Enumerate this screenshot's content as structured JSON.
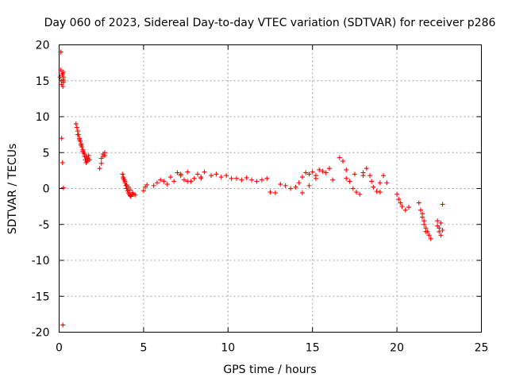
{
  "chart_data": {
    "type": "scatter",
    "title": "Day 060 of 2023, Sidereal Day-to-day VTEC variation (SDTVAR) for receiver p286",
    "xlabel": "GPS time / hours",
    "ylabel": "SDTVAR / TECUs",
    "xlim": [
      0,
      25
    ],
    "ylim": [
      -20,
      20
    ],
    "xticks": [
      0,
      5,
      10,
      15,
      20,
      25
    ],
    "yticks": [
      -20,
      -15,
      -10,
      -5,
      0,
      5,
      10,
      15,
      20
    ],
    "xtick_labels": [
      "0",
      "5",
      "10",
      "15",
      "20",
      "25"
    ],
    "ytick_labels": [
      "-20",
      "-15",
      "-10",
      "-5",
      "0",
      "5",
      "10",
      "15",
      "20"
    ],
    "grid": true,
    "marker": "plus",
    "color": "#ff0000",
    "series": [
      {
        "name": "SDTVAR",
        "x": [
          0.05,
          0.1,
          0.12,
          0.15,
          0.18,
          0.2,
          0.22,
          0.25,
          0.1,
          0.15,
          0.2,
          0.25,
          0.22,
          0.25,
          0.25,
          0.25,
          0.25,
          1.0,
          1.05,
          1.1,
          1.15,
          1.2,
          1.25,
          1.3,
          1.35,
          1.4,
          1.45,
          1.5,
          1.55,
          1.6,
          1.65,
          1.7,
          1.75,
          1.8,
          1.1,
          1.2,
          1.3,
          1.4,
          1.5,
          1.6,
          1.7,
          2.4,
          2.5,
          2.6,
          2.7,
          2.5,
          2.6,
          2.7,
          3.75,
          3.8,
          3.85,
          3.9,
          3.95,
          4.0,
          4.05,
          4.1,
          4.15,
          4.2,
          4.25,
          4.3,
          4.35,
          4.4,
          4.5,
          3.8,
          3.9,
          4.0,
          4.1,
          4.2,
          5.0,
          5.1,
          5.2,
          5.6,
          5.8,
          6.0,
          6.2,
          6.4,
          6.6,
          6.8,
          7.0,
          7.2,
          7.4,
          7.6,
          7.8,
          8.0,
          8.2,
          8.4,
          8.6,
          7.2,
          7.6,
          8.4,
          9.0,
          9.3,
          9.6,
          9.9,
          10.2,
          10.5,
          10.8,
          11.1,
          11.4,
          11.7,
          12.0,
          12.3,
          12.5,
          12.8,
          13.1,
          13.4,
          13.7,
          14.0,
          14.2,
          14.4,
          14.6,
          14.8,
          15.0,
          15.2,
          15.4,
          15.6,
          15.8,
          16.0,
          16.2,
          14.4,
          14.8,
          15.2,
          16.6,
          16.8,
          17.0,
          17.2,
          17.4,
          17.6,
          17.8,
          18.0,
          18.2,
          18.4,
          18.6,
          18.8,
          19.0,
          19.2,
          19.4,
          17.0,
          17.5,
          18.0,
          18.5,
          19.0,
          20.0,
          20.1,
          20.2,
          20.3,
          20.5,
          20.7,
          21.3,
          21.4,
          21.5,
          21.6,
          21.7,
          21.8,
          21.9,
          22.0,
          21.5,
          21.6,
          21.7,
          22.4,
          22.5,
          22.6,
          22.7,
          22.4,
          22.5,
          22.6,
          22.7
        ],
        "y": [
          15.5,
          16.5,
          15.0,
          14.5,
          15.8,
          16.0,
          14.2,
          15.0,
          19.0,
          7.0,
          3.6,
          0.1,
          -19.0,
          15.5,
          14.8,
          16.2,
          15.2,
          9.0,
          8.5,
          8.0,
          7.5,
          7.0,
          6.6,
          6.2,
          5.8,
          5.4,
          5.0,
          4.5,
          4.0,
          3.6,
          3.8,
          4.2,
          4.6,
          4.0,
          7.5,
          6.8,
          6.0,
          5.2,
          4.8,
          4.4,
          4.0,
          2.8,
          3.5,
          4.5,
          5.0,
          4.2,
          4.8,
          4.6,
          2.0,
          1.6,
          1.2,
          0.8,
          0.4,
          0.0,
          -0.3,
          -0.6,
          -0.8,
          -1.0,
          -1.1,
          -0.8,
          -0.6,
          -0.8,
          -0.9,
          1.4,
          1.0,
          0.5,
          0.2,
          -0.2,
          -0.3,
          0.2,
          0.5,
          0.4,
          0.8,
          1.2,
          1.0,
          0.6,
          1.6,
          1.0,
          2.2,
          2.0,
          1.2,
          2.3,
          1.0,
          1.4,
          2.0,
          1.6,
          2.3,
          1.8,
          1.0,
          1.4,
          1.8,
          2.0,
          1.6,
          1.8,
          1.4,
          1.4,
          1.2,
          1.5,
          1.2,
          1.0,
          1.2,
          1.4,
          -0.5,
          -0.6,
          0.6,
          0.4,
          0.0,
          0.2,
          0.8,
          1.6,
          2.2,
          2.0,
          2.3,
          1.8,
          2.6,
          2.4,
          2.2,
          2.8,
          1.2,
          -0.6,
          0.4,
          1.4,
          4.3,
          3.8,
          2.6,
          1.0,
          0.0,
          -0.5,
          -0.8,
          1.8,
          2.8,
          1.8,
          0.2,
          -0.4,
          0.8,
          1.8,
          0.8,
          1.4,
          2.0,
          2.2,
          1.0,
          -0.5,
          -0.8,
          -1.5,
          -2.0,
          -2.5,
          -3.0,
          -2.6,
          -2.0,
          -3.0,
          -4.0,
          -5.0,
          -5.5,
          -6.0,
          -6.5,
          -7.0,
          -3.5,
          -4.5,
          -6.0,
          -4.5,
          -5.5,
          -6.5,
          -5.8,
          -5.2,
          -6.0,
          -4.8,
          -2.2
        ]
      }
    ]
  }
}
